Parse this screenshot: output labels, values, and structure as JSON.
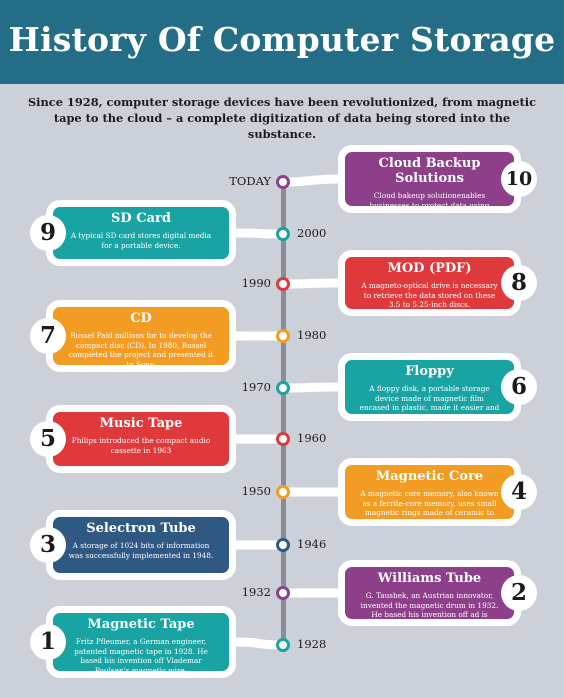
{
  "header": {
    "title": "History Of Computer Storage",
    "intro": "Since 1928, computer storage devices have been revolutionized, from magnetic tape to the cloud – a complete digitization of data being stored into the substance."
  },
  "colors": {
    "header_bg": "#236d86",
    "purple": "#8e3f8a",
    "teal": "#1aa3a3",
    "red": "#e0393c",
    "orange": "#f39c24",
    "navy": "#2f5883"
  },
  "items": [
    {
      "number": "10",
      "year": "TODAY",
      "title": "Cloud Backup Solutions",
      "desc": "Cloud bakeup solutionenables businesses to protect data using backup, recover from a disaster, and archive unused files using only a light weight software",
      "color": "#8e3f8a"
    },
    {
      "number": "9",
      "year": "2000",
      "title": "SD Card",
      "desc": "A typical SD card stores digital media for a portable device.",
      "color": "#1aa3a3"
    },
    {
      "number": "8",
      "year": "1990",
      "title": "MOD (PDF)",
      "desc": "A magneto-optical drive is necessary to retrieve the data stored on these 3.5 to 5.25-inch discs.",
      "color": "#e0393c"
    },
    {
      "number": "7",
      "year": "1980",
      "title": "CD",
      "desc": "Russel Paid millions for to develop the compact disc (CD). In 1980, Russel completed the project and presented it to Sony.",
      "color": "#f39c24"
    },
    {
      "number": "6",
      "year": "1970",
      "title": "Floppy",
      "desc": "A floppy disk, a portable storage device made of magnetic film encased in plastic, made it easier and faster to store data.",
      "color": "#1aa3a3"
    },
    {
      "number": "5",
      "year": "1960",
      "title": "Music Tape",
      "desc": "Philips introduced the compact audio cassette in 1963",
      "color": "#e0393c"
    },
    {
      "number": "4",
      "year": "1950",
      "title": "Magnetic Core",
      "desc": "A magnetic core memory, also known as a ferrite-core memory, uses small magnetic rings made of ceramic to store information from the polarity to the magnetic field it contains.",
      "color": "#f39c24"
    },
    {
      "number": "3",
      "year": "1946",
      "title": "Selectron Tube",
      "desc": "A storage of 1024 bits of information was successfully implemented in 1948.",
      "color": "#2f5883"
    },
    {
      "number": "2",
      "year": "1932",
      "title": "Williams Tube",
      "desc": "G. Taushek, an Austrian innovator, invented the magnetic drum in 1932. He based his invention off ad is covery credited to Fritz Pfleumer.",
      "color": "#8e3f8a"
    },
    {
      "number": "1",
      "year": "1928",
      "title": "Magnetic Tape",
      "desc": "Fritz Pfleumer, a German engineer, patented magnetic tape in 1928. He based his invention off Vlademar Poulsen's magnetic wire.",
      "color": "#1aa3a3"
    }
  ]
}
